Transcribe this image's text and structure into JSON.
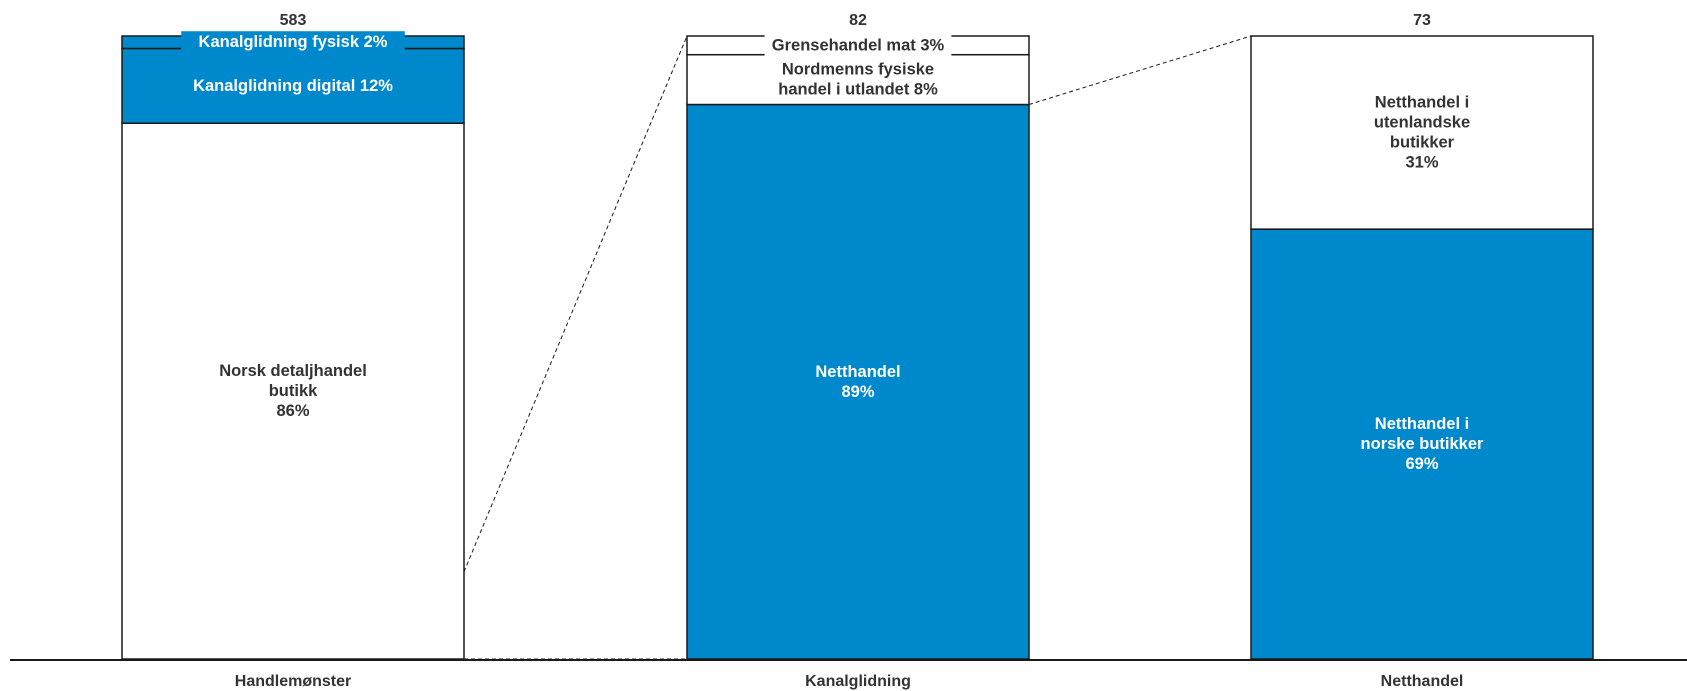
{
  "chart_data": {
    "type": "bar",
    "stacked": true,
    "normalized": true,
    "categories": [
      "Handlemønster",
      "Kanalglidning",
      "Netthandel"
    ],
    "totals": [
      "583",
      "82",
      "73"
    ],
    "bars": [
      {
        "segments": [
          {
            "label": [
              "Norsk detaljhandel",
              "butikk",
              "86%"
            ],
            "value": 86,
            "fill": "white"
          },
          {
            "label": [
              "Kanalglidning digital 12%"
            ],
            "value": 12,
            "fill": "blue"
          },
          {
            "label": [
              "Kanalglidning fysisk 2%"
            ],
            "value": 2,
            "fill": "blue"
          }
        ]
      },
      {
        "segments": [
          {
            "label": [
              "Netthandel",
              "89%"
            ],
            "value": 89,
            "fill": "blue"
          },
          {
            "label": [
              "Nordmenns fysiske",
              "handel i utlandet 8%"
            ],
            "value": 8,
            "fill": "white"
          },
          {
            "label": [
              "Grensehandel mat 3%"
            ],
            "value": 3,
            "fill": "white"
          }
        ]
      },
      {
        "segments": [
          {
            "label": [
              "Netthandel i",
              "norske butikker",
              "69%"
            ],
            "value": 69,
            "fill": "blue"
          },
          {
            "label": [
              "Netthandel i",
              "utenlandske",
              "butikker",
              "31%"
            ],
            "value": 31,
            "fill": "white"
          }
        ]
      }
    ],
    "connectors": [
      {
        "from_bar": 0,
        "to_bar": 1,
        "from_span": [
          0,
          14
        ],
        "style": "dashed"
      },
      {
        "from_bar": 1,
        "to_bar": 2,
        "from_span": [
          0,
          89
        ],
        "style": "dashed",
        "mode": "top"
      }
    ],
    "colors": {
      "blue": "#0088cc",
      "white": "#ffffff",
      "stroke": "#1a1a1a",
      "text_dark": "#333333",
      "text_light": "#ffffff"
    }
  }
}
